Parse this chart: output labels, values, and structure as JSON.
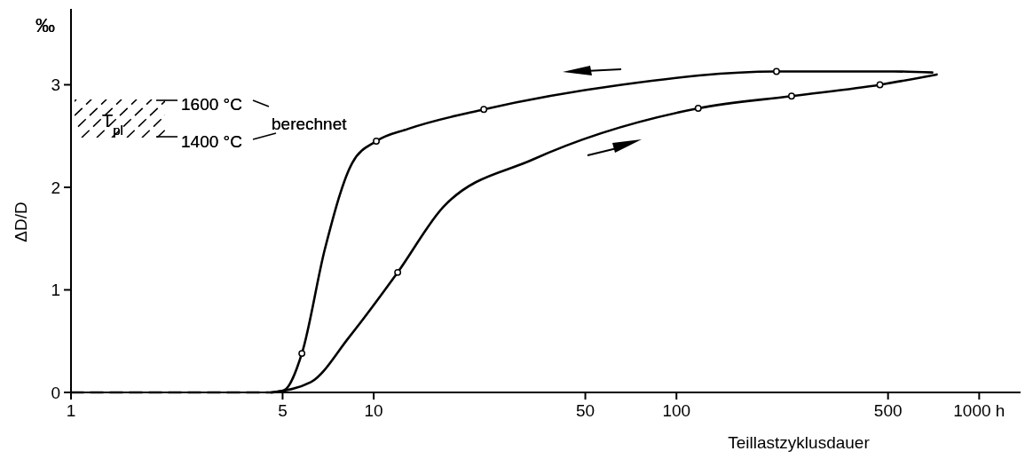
{
  "chart_data": {
    "type": "line",
    "xlabel": "Teillastzyklusdauer",
    "ylabel": "ΔD/D",
    "log": "x",
    "grid": false,
    "xlim": [
      1,
      1370
    ],
    "xticks": [
      1,
      5,
      10,
      50,
      100,
      500,
      {
        "value": 1000,
        "label": "1000 h"
      }
    ],
    "ylim": [
      0,
      3.74
    ],
    "yticks": [
      0,
      1,
      2,
      3
    ],
    "annotations": [
      "‰",
      "T$_{pl}$",
      "1600 °C",
      "1400 °C",
      "berechnet"
    ],
    "series": [
      {
        "color": "#000000",
        "line_style": "dashed",
        "marker": "none",
        "x": [
          1,
          4.6
        ],
        "values": [
          0,
          0
        ]
      },
      {
        "color": "#000000",
        "line_style": "solid",
        "marker": "none",
        "x": [
          4.6,
          6.2,
          8.3,
          12.0,
          17.0,
          33.5,
          118,
          240,
          470,
          724
        ],
        "values": [
          0,
          0.1,
          0.54,
          1.17,
          1.81,
          2.27,
          2.77,
          2.89,
          3.0,
          3.1
        ]
      },
      {
        "color": "#000000",
        "line_style": "solid",
        "marker": "none",
        "x": [
          4.6,
          5.05,
          5.79,
          6.9,
          8.5,
          10.2,
          13.0,
          23.1,
          65.8,
          214,
          523,
          700
        ],
        "values": [
          0,
          0.02,
          0.38,
          1.4,
          2.24,
          2.45,
          2.57,
          2.76,
          3.0,
          3.13,
          3.13,
          3.12
        ]
      },
      {
        "type": "scatter",
        "color": "#000000",
        "marker": "circle",
        "x": [
          12.0,
          118,
          240,
          470,
          5.79,
          10.2,
          23.1,
          214
        ],
        "values": [
          1.17,
          2.77,
          2.89,
          3.0,
          0.38,
          2.45,
          2.76,
          3.13
        ]
      }
    ]
  }
}
